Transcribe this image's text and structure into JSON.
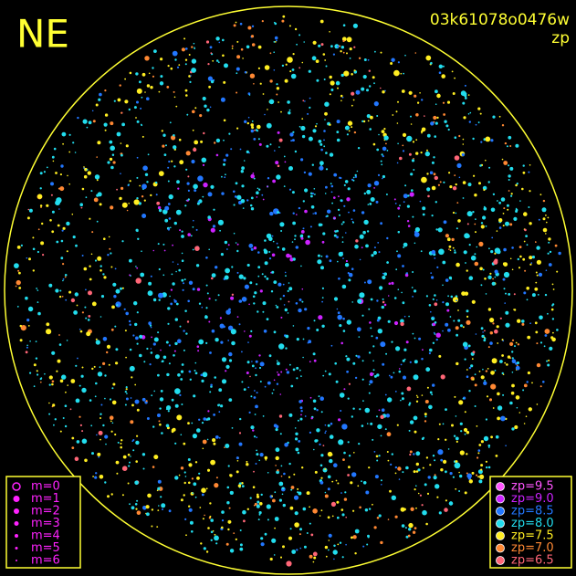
{
  "header": {
    "corner": "NE",
    "frame_id": "03k61078o0476w",
    "color_key": "zp"
  },
  "frame_color": "#ffff33",
  "m_legend": {
    "color": "#ff22ff",
    "entries": [
      "m=0",
      "m=1",
      "m=2",
      "m=3",
      "m=4",
      "m=5",
      "m=6"
    ]
  },
  "zp_legend": {
    "entries": [
      {
        "label": "zp=9.5",
        "color": "#ff55ff"
      },
      {
        "label": "zp=9.0",
        "color": "#cc22ff"
      },
      {
        "label": "zp=8.5",
        "color": "#2277ff"
      },
      {
        "label": "zp=8.0",
        "color": "#22ddee"
      },
      {
        "label": "zp=7.5",
        "color": "#ffee22"
      },
      {
        "label": "zp=7.0",
        "color": "#ff8833"
      },
      {
        "label": "zp=6.5",
        "color": "#ff6677"
      }
    ]
  }
}
